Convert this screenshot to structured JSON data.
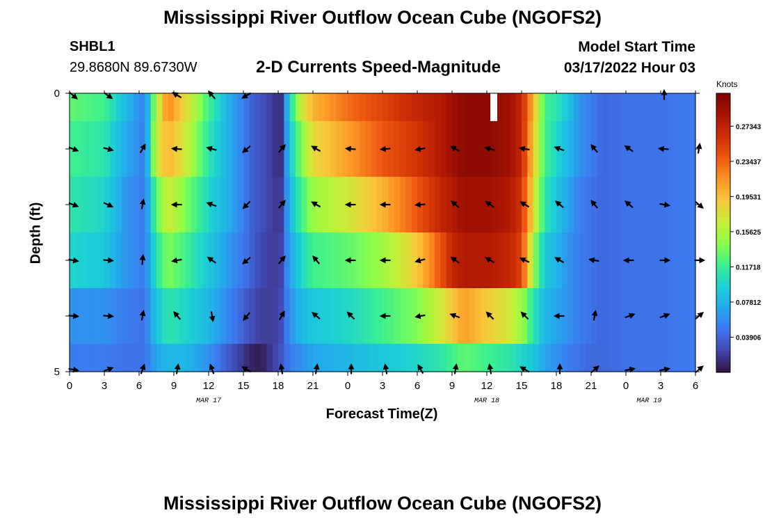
{
  "header": {
    "title": "Mississippi River Outflow Ocean Cube (NGOFS2)",
    "station_id": "SHBL1",
    "coordinates": "29.8680N  89.6730W",
    "subtitle": "2-D Currents Speed-Magnitude",
    "model_start_label": "Model Start Time",
    "model_start_value": "03/17/2022 Hour 03"
  },
  "footer": {
    "title": "Mississippi River Outflow Ocean Cube (NGOFS2)"
  },
  "chart_data": {
    "type": "heatmap",
    "title": "2-D Currents Speed-Magnitude",
    "xlabel": "Forecast Time(Z)",
    "ylabel": "Depth (ft)",
    "x_hours": [
      0,
      3,
      6,
      9,
      12,
      15,
      18,
      21,
      24,
      27,
      30,
      33,
      36,
      39,
      42,
      45,
      48,
      51,
      54
    ],
    "x_tick_labels": [
      "0",
      "3",
      "6",
      "9",
      "12",
      "15",
      "18",
      "21",
      "0",
      "3",
      "6",
      "9",
      "12",
      "15",
      "18",
      "21",
      "0",
      "3",
      "6"
    ],
    "date_labels": [
      {
        "text": "MAR 17",
        "hour": 12
      },
      {
        "text": "MAR 18",
        "hour": 36
      },
      {
        "text": "MAR 19",
        "hour": 50
      }
    ],
    "y_range": [
      0,
      5
    ],
    "y_tick_labels": [
      "0",
      "5"
    ],
    "colorbar": {
      "unit": "Knots",
      "range": [
        0.0,
        0.31
      ],
      "tick_labels": [
        "0.03906",
        "0.07812",
        "0.11718",
        "0.15625",
        "0.19531",
        "0.23437",
        "0.27343"
      ],
      "tick_values": [
        0.03906,
        0.07812,
        0.11718,
        0.15625,
        0.19531,
        0.23437,
        0.27343
      ],
      "colors": [
        "#30123b",
        "#4146ad",
        "#3e78f0",
        "#24a9ec",
        "#1bd0d5",
        "#3bf08f",
        "#8bfe4b",
        "#c6ee36",
        "#f8c83c",
        "#fc9425",
        "#ed5911",
        "#cf2f05",
        "#a71402",
        "#7a0403"
      ]
    },
    "speed_profile": {
      "hours": [
        0,
        3,
        5,
        6.5,
        7.5,
        8.5,
        10,
        12,
        14,
        15.5,
        16.5,
        17.5,
        18.2,
        19,
        20,
        21,
        24,
        27,
        30,
        32,
        33,
        34,
        36,
        38,
        39,
        40,
        41,
        42,
        43,
        44,
        45,
        46,
        48,
        51,
        54
      ],
      "layers": [
        [
          0.13,
          0.12,
          0.08,
          0.05,
          0.16,
          0.22,
          0.18,
          0.12,
          0.07,
          0.04,
          0.03,
          0.02,
          0.01,
          0.1,
          0.17,
          0.2,
          0.23,
          0.25,
          0.27,
          0.28,
          0.29,
          0.3,
          0.3,
          0.29,
          0.27,
          0.2,
          0.12,
          0.11,
          0.09,
          0.06,
          0.05,
          0.04,
          0.045,
          0.045,
          0.05
        ],
        [
          0.12,
          0.11,
          0.07,
          0.05,
          0.17,
          0.2,
          0.17,
          0.11,
          0.07,
          0.04,
          0.03,
          0.02,
          0.01,
          0.09,
          0.14,
          0.18,
          0.21,
          0.24,
          0.26,
          0.28,
          0.29,
          0.3,
          0.3,
          0.29,
          0.27,
          0.19,
          0.12,
          0.1,
          0.08,
          0.06,
          0.05,
          0.04,
          0.045,
          0.045,
          0.05
        ],
        [
          0.11,
          0.1,
          0.06,
          0.05,
          0.13,
          0.17,
          0.14,
          0.1,
          0.07,
          0.04,
          0.03,
          0.02,
          0.015,
          0.08,
          0.12,
          0.15,
          0.17,
          0.2,
          0.24,
          0.27,
          0.28,
          0.29,
          0.29,
          0.28,
          0.26,
          0.18,
          0.11,
          0.09,
          0.07,
          0.05,
          0.045,
          0.04,
          0.045,
          0.045,
          0.05
        ],
        [
          0.1,
          0.09,
          0.06,
          0.05,
          0.11,
          0.14,
          0.12,
          0.09,
          0.06,
          0.04,
          0.025,
          0.02,
          0.02,
          0.07,
          0.1,
          0.12,
          0.13,
          0.15,
          0.19,
          0.24,
          0.27,
          0.28,
          0.28,
          0.27,
          0.25,
          0.15,
          0.09,
          0.08,
          0.06,
          0.05,
          0.045,
          0.04,
          0.045,
          0.045,
          0.05
        ],
        [
          0.06,
          0.06,
          0.05,
          0.045,
          0.09,
          0.11,
          0.1,
          0.08,
          0.05,
          0.03,
          0.02,
          0.02,
          0.025,
          0.06,
          0.08,
          0.09,
          0.1,
          0.12,
          0.14,
          0.17,
          0.19,
          0.21,
          0.19,
          0.17,
          0.15,
          0.11,
          0.08,
          0.07,
          0.06,
          0.05,
          0.045,
          0.04,
          0.045,
          0.045,
          0.05
        ],
        [
          0.05,
          0.05,
          0.045,
          0.045,
          0.07,
          0.08,
          0.08,
          0.06,
          0.03,
          0.01,
          0.005,
          0.02,
          0.03,
          0.05,
          0.06,
          0.07,
          0.08,
          0.09,
          0.1,
          0.11,
          0.12,
          0.13,
          0.12,
          0.11,
          0.1,
          0.09,
          0.07,
          0.06,
          0.05,
          0.045,
          0.04,
          0.04,
          0.045,
          0.045,
          0.05
        ]
      ]
    },
    "arrows": {
      "hours": [
        0,
        3,
        6,
        9,
        12,
        15,
        18,
        21,
        24,
        27,
        30,
        33,
        36,
        39,
        42,
        45,
        48,
        51,
        54
      ],
      "depths": [
        0,
        1,
        2,
        3,
        4,
        5
      ],
      "angles_deg": [
        [
          -40,
          -35,
          null,
          -210,
          -230,
          -150,
          null,
          null,
          null,
          null,
          null,
          null,
          null,
          null,
          null,
          null,
          null,
          90,
          null
        ],
        [
          -20,
          -15,
          60,
          -185,
          -195,
          -140,
          50,
          150,
          175,
          -175,
          -170,
          150,
          165,
          170,
          160,
          130,
          145,
          175,
          80
        ],
        [
          -20,
          -25,
          80,
          -180,
          -200,
          -135,
          50,
          150,
          180,
          -180,
          -175,
          140,
          145,
          150,
          140,
          130,
          140,
          -10,
          -40
        ],
        [
          -10,
          -5,
          85,
          -170,
          -215,
          -140,
          50,
          130,
          180,
          -180,
          -165,
          145,
          150,
          155,
          150,
          170,
          180,
          0,
          0
        ],
        [
          -5,
          -5,
          80,
          130,
          -80,
          -130,
          60,
          140,
          135,
          -180,
          -170,
          160,
          135,
          135,
          -180,
          80,
          20,
          20,
          40
        ],
        [
          -10,
          20,
          70,
          80,
          110,
          150,
          100,
          80,
          90,
          100,
          120,
          80,
          100,
          150,
          90,
          40,
          10,
          10,
          40
        ]
      ]
    },
    "missing_segment": {
      "hour_start": 36.3,
      "hour_end": 36.9,
      "depth_start": 0,
      "depth_end": 0.5
    }
  }
}
